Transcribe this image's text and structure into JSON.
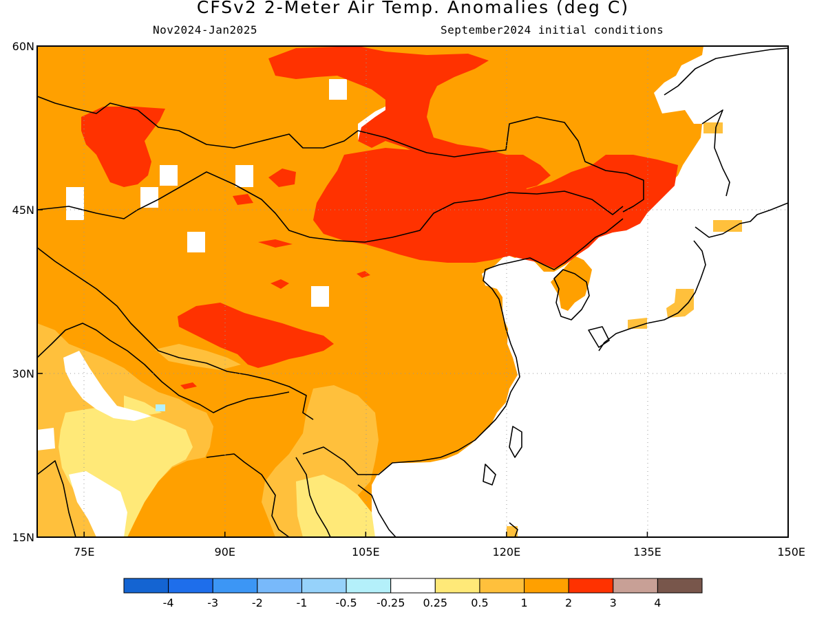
{
  "title": "CFSv2 2-Meter Air Temp. Anomalies (deg C)",
  "subtitle_left": "Nov2024-Jan2025",
  "subtitle_right": "September2024 initial conditions",
  "map": {
    "lon_range": [
      70,
      150
    ],
    "lat_range": [
      15,
      60
    ],
    "lon_ticks": [
      {
        "value": 75,
        "label": "75E"
      },
      {
        "value": 90,
        "label": "90E"
      },
      {
        "value": 105,
        "label": "105E"
      },
      {
        "value": 120,
        "label": "120E"
      },
      {
        "value": 135,
        "label": "135E"
      },
      {
        "value": 150,
        "label": "150E"
      }
    ],
    "lat_ticks": [
      {
        "value": 60,
        "label": "60N"
      },
      {
        "value": 45,
        "label": "45N"
      },
      {
        "value": 30,
        "label": "30N"
      },
      {
        "value": 15,
        "label": "15N"
      }
    ],
    "grid": "dotted",
    "ocean_color": "#ffffff",
    "land_default_color": "#ffa000"
  },
  "colorbar": {
    "colors": [
      "#1464d2",
      "#1e6eeb",
      "#3c96f5",
      "#78b9fa",
      "#96d2fa",
      "#b4f0fa",
      "#ffffff",
      "#ffe978",
      "#ffc03c",
      "#ffa000",
      "#ff3200",
      "#c8a096",
      "#78564b"
    ],
    "labels": [
      "-4",
      "-3",
      "-2",
      "-1",
      "-0.5",
      "-0.25",
      "0.25",
      "0.5",
      "1",
      "2",
      "3",
      "4"
    ]
  }
}
